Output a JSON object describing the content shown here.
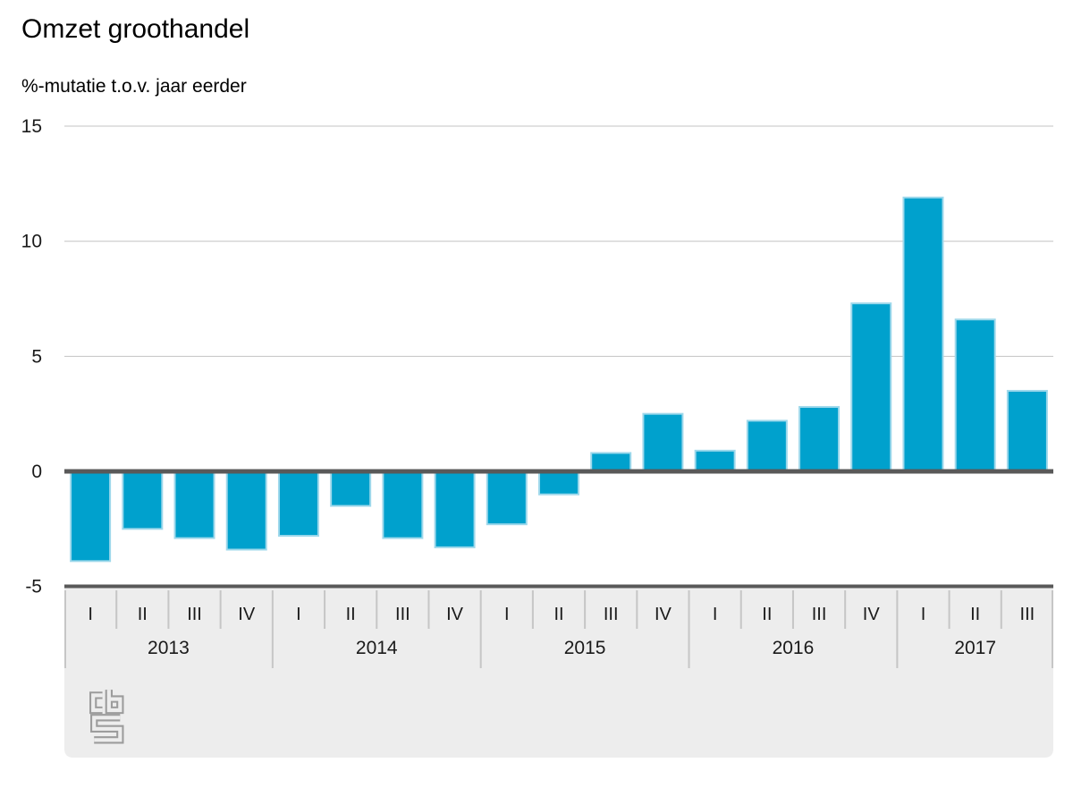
{
  "header": {
    "title": "Omzet groothandel",
    "subtitle": "%-mutatie t.o.v. jaar eerder"
  },
  "chart_data": {
    "type": "bar",
    "title": "Omzet groothandel",
    "subtitle": "%-mutatie t.o.v. jaar eerder",
    "ylabel": "%-mutatie t.o.v. jaar eerder",
    "xlabel": "",
    "ylim": [
      -5,
      15
    ],
    "yticks": [
      15,
      10,
      5,
      0,
      -5
    ],
    "grid": true,
    "legend": "none",
    "groups": [
      {
        "year": "2013",
        "quarters": [
          "I",
          "II",
          "III",
          "IV"
        ],
        "values": [
          -3.9,
          -2.5,
          -2.9,
          -3.4
        ]
      },
      {
        "year": "2014",
        "quarters": [
          "I",
          "II",
          "III",
          "IV"
        ],
        "values": [
          -2.8,
          -1.5,
          -2.9,
          -3.3
        ]
      },
      {
        "year": "2015",
        "quarters": [
          "I",
          "II",
          "III",
          "IV"
        ],
        "values": [
          -2.3,
          -1.0,
          0.8,
          2.5
        ]
      },
      {
        "year": "2016",
        "quarters": [
          "I",
          "II",
          "III",
          "IV"
        ],
        "values": [
          0.9,
          2.2,
          2.8,
          7.3
        ]
      },
      {
        "year": "2017",
        "quarters": [
          "I",
          "II",
          "III"
        ],
        "values": [
          11.9,
          6.6,
          3.5
        ]
      }
    ],
    "colors": {
      "bar": "#00a1cd",
      "bar_border": "#9ed8eb",
      "gridline": "#c3c3c3",
      "zero_axis": "#595959",
      "band_background": "#ededed",
      "band_separator": "#c6c6c6",
      "tick_text": "#1a1a1a",
      "logo": "#9c9c9c"
    }
  },
  "branding": {
    "logo_name": "cbs-logo"
  }
}
